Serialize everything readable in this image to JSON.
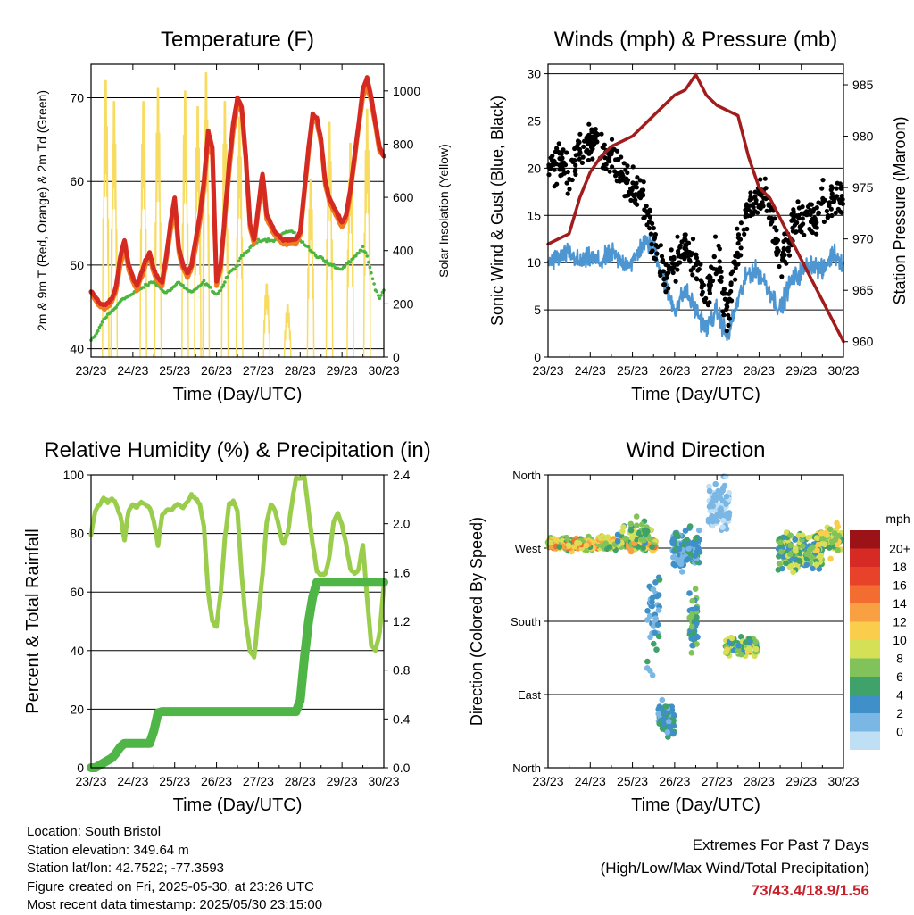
{
  "x_ticks": [
    "23/23",
    "24/23",
    "25/23",
    "26/23",
    "27/23",
    "28/23",
    "29/23",
    "30/23"
  ],
  "x_label": "Time (Day/UTC)",
  "colors": {
    "temp_red": "#d52a22",
    "temp_orange": "#f07a22",
    "dewpoint_green": "#4cb540",
    "insolation_yellow": "#f8dc62",
    "wind_blue": "#4d96d1",
    "gust_black": "#000000",
    "pressure_maroon": "#a11c1c",
    "rh_lightgreen": "#9acd4c",
    "precip_green": "#4fb546",
    "extremes_red": "#c8202a"
  },
  "chart_data": [
    {
      "type": "line",
      "title": "Temperature (F)",
      "xlabel": "Time (Day/UTC)",
      "ylabel": "2m & 9m T (Red, Orange) & 2m Td (Green)",
      "y2label": "Solar Insolation (Yellow)",
      "ylim": [
        39,
        74
      ],
      "yticks": [
        40,
        50,
        60,
        70
      ],
      "y2lim": [
        0,
        1100
      ],
      "y2ticks": [
        0,
        200,
        400,
        600,
        800,
        1000
      ],
      "x": [
        0,
        0.1,
        0.2,
        0.3,
        0.4,
        0.5,
        0.6,
        0.7,
        0.8,
        0.9,
        1,
        1.1,
        1.2,
        1.3,
        1.4,
        1.5,
        1.6,
        1.7,
        1.8,
        1.9,
        2,
        2.1,
        2.2,
        2.3,
        2.4,
        2.5,
        2.6,
        2.7,
        2.8,
        2.9,
        3,
        3.1,
        3.2,
        3.3,
        3.4,
        3.5,
        3.6,
        3.7,
        3.8,
        3.9,
        4,
        4.1,
        4.2,
        4.3,
        4.4,
        4.5,
        4.6,
        4.7,
        4.8,
        4.9,
        5,
        5.1,
        5.2,
        5.3,
        5.4,
        5.5,
        5.6,
        5.7,
        5.8,
        5.9,
        6,
        6.1,
        6.2,
        6.3,
        6.4,
        6.5,
        6.6,
        6.7,
        6.8,
        6.9,
        7
      ],
      "series": [
        {
          "name": "2m T",
          "color": "#d52a22",
          "values": [
            47,
            46.2,
            45.5,
            45.2,
            45.5,
            46,
            47.5,
            51,
            53,
            50,
            48.5,
            47.5,
            49,
            50.5,
            51.5,
            49.5,
            48.5,
            48,
            51,
            55,
            58,
            52,
            50,
            49,
            50,
            53,
            56,
            60,
            66,
            64,
            48,
            50,
            56,
            62,
            67,
            70,
            69,
            63,
            55,
            53,
            57,
            61,
            56,
            55,
            54,
            53.5,
            53,
            53,
            53,
            53,
            54,
            59,
            64,
            68,
            67.5,
            65,
            60,
            58,
            57,
            56,
            55,
            56,
            59,
            63,
            67,
            71,
            72.5,
            70,
            67,
            64,
            63
          ]
        },
        {
          "name": "9m T",
          "color": "#f07a22",
          "values": [
            46.8,
            45.8,
            45.1,
            44.8,
            45,
            45.5,
            47,
            50,
            52,
            49.5,
            48,
            47,
            48.5,
            50,
            51,
            49,
            48,
            47.5,
            50.5,
            54,
            57,
            51.5,
            49.5,
            48.5,
            49.5,
            52,
            55,
            59,
            65,
            63,
            47.5,
            49.5,
            55.5,
            61,
            66,
            69,
            68.5,
            62.5,
            54.5,
            52.5,
            56.5,
            60.5,
            55.5,
            54.5,
            53.5,
            53,
            52.5,
            52.5,
            52.5,
            52.5,
            53.5,
            58.5,
            63.5,
            67.5,
            67,
            64.5,
            59.5,
            57.5,
            56.5,
            55.5,
            54.5,
            55.5,
            58.5,
            62.5,
            66.5,
            70,
            71.5,
            69.5,
            66.5,
            63.5,
            63
          ]
        },
        {
          "name": "2m Td",
          "color": "#4cb540",
          "values": [
            41,
            41.5,
            42.5,
            43.5,
            44,
            44.5,
            45,
            45.8,
            46,
            46.3,
            46.5,
            47,
            47.2,
            47.5,
            47.8,
            48,
            47.5,
            47,
            46.8,
            47,
            47.5,
            48,
            47.5,
            47,
            46.8,
            47,
            47.5,
            48,
            47.5,
            47,
            46.5,
            47,
            48,
            49,
            49.5,
            50,
            51,
            51.5,
            52,
            52.5,
            53,
            53,
            53,
            53,
            53,
            53.5,
            53.8,
            54,
            54,
            53.5,
            53,
            52.5,
            52,
            51.5,
            51,
            51,
            50.5,
            50,
            50,
            49.5,
            49.5,
            50,
            50.5,
            51,
            51.5,
            52,
            51,
            49,
            47,
            46,
            47
          ]
        },
        {
          "name": "Solar Insolation",
          "color": "#f8dc62",
          "axis": "y2",
          "values": [
            0,
            0,
            0,
            0,
            0,
            0,
            0,
            0,
            0,
            0,
            0,
            0,
            0,
            0,
            0,
            0,
            0,
            0,
            0,
            0,
            0,
            0,
            0,
            0,
            0,
            0,
            0,
            0,
            0,
            0,
            0,
            0,
            0,
            0,
            0,
            0,
            0,
            0,
            0,
            0,
            0,
            0,
            0,
            0,
            0,
            0,
            0,
            0,
            0,
            0,
            0,
            0,
            0,
            0,
            0,
            0,
            0,
            0,
            0,
            0,
            0,
            0,
            0,
            0,
            0,
            0,
            0,
            0,
            0,
            0,
            0
          ],
          "peaks": [
            {
              "x": 0.35,
              "v": 1060
            },
            {
              "x": 0.55,
              "v": 980
            },
            {
              "x": 1.25,
              "v": 980
            },
            {
              "x": 1.6,
              "v": 1030
            },
            {
              "x": 2.25,
              "v": 1020
            },
            {
              "x": 2.55,
              "v": 960
            },
            {
              "x": 2.75,
              "v": 1090
            },
            {
              "x": 3.2,
              "v": 980
            },
            {
              "x": 3.55,
              "v": 920
            },
            {
              "x": 4.2,
              "v": 280
            },
            {
              "x": 4.7,
              "v": 200
            },
            {
              "x": 5.25,
              "v": 680
            },
            {
              "x": 5.7,
              "v": 900
            },
            {
              "x": 6.2,
              "v": 820
            },
            {
              "x": 6.6,
              "v": 950
            }
          ]
        }
      ]
    },
    {
      "type": "line",
      "title": "Winds (mph) & Pressure (mb)",
      "xlabel": "Time (Day/UTC)",
      "ylabel": "Sonic Wind & Gust (Blue, Black)",
      "y2label": "Station Pressure (Maroon)",
      "ylim": [
        0,
        31
      ],
      "yticks": [
        0,
        5,
        10,
        15,
        20,
        25,
        30
      ],
      "y2lim": [
        958.5,
        987
      ],
      "y2ticks": [
        960,
        965,
        970,
        975,
        980,
        985
      ],
      "x": [
        0,
        0.25,
        0.5,
        0.75,
        1,
        1.25,
        1.5,
        1.75,
        2,
        2.25,
        2.5,
        2.75,
        3,
        3.25,
        3.5,
        3.75,
        4,
        4.25,
        4.5,
        4.75,
        5,
        5.25,
        5.5,
        5.75,
        6,
        6.25,
        6.5,
        6.75,
        7
      ],
      "series": [
        {
          "name": "Wind",
          "color": "#4d96d1",
          "values": [
            10,
            10.5,
            11,
            10,
            10.5,
            10,
            11,
            10,
            10,
            12,
            12,
            8,
            5,
            7,
            5,
            3,
            5,
            2,
            6,
            9,
            9,
            7,
            5,
            8,
            9,
            10,
            9,
            11,
            10
          ]
        },
        {
          "name": "Gust",
          "color": "#000000",
          "values": [
            20,
            21,
            19,
            22,
            23,
            22,
            21,
            19,
            18,
            17,
            12,
            9,
            10,
            12,
            10,
            6,
            11,
            4,
            12,
            16,
            17,
            16,
            10,
            13,
            15,
            15,
            16,
            17,
            17
          ]
        },
        {
          "name": "Pressure",
          "color": "#a11c1c",
          "axis": "y2",
          "values": [
            969.5,
            970,
            970.5,
            974,
            976.5,
            978,
            979,
            979.5,
            980,
            981,
            982,
            983,
            984,
            984.5,
            986,
            984,
            983,
            982.5,
            982,
            978,
            975,
            974,
            972,
            970,
            968,
            966,
            964,
            962,
            960
          ]
        }
      ]
    },
    {
      "type": "line",
      "title": "Relative Humidity (%) & Precipitation (in)",
      "xlabel": "Time (Day/UTC)",
      "ylabel": "Percent & Total Rainfall",
      "ylim": [
        0,
        100
      ],
      "yticks": [
        0,
        20,
        40,
        60,
        80,
        100
      ],
      "y2lim": [
        0,
        2.4
      ],
      "y2ticks": [
        "0.0",
        "0.4",
        "0.8",
        "1.2",
        "1.6",
        "2.0",
        "2.4"
      ],
      "x": [
        0,
        0.1,
        0.2,
        0.3,
        0.4,
        0.5,
        0.6,
        0.7,
        0.8,
        0.9,
        1,
        1.1,
        1.2,
        1.3,
        1.4,
        1.5,
        1.6,
        1.7,
        1.8,
        1.9,
        2,
        2.1,
        2.2,
        2.3,
        2.4,
        2.5,
        2.6,
        2.7,
        2.8,
        2.9,
        3,
        3.1,
        3.2,
        3.3,
        3.4,
        3.5,
        3.6,
        3.7,
        3.8,
        3.9,
        4,
        4.1,
        4.2,
        4.3,
        4.4,
        4.5,
        4.6,
        4.7,
        4.8,
        4.9,
        5,
        5.1,
        5.2,
        5.3,
        5.4,
        5.5,
        5.6,
        5.7,
        5.8,
        5.9,
        6,
        6.1,
        6.2,
        6.3,
        6.4,
        6.5,
        6.6,
        6.7,
        6.8,
        6.9,
        7
      ],
      "series": [
        {
          "name": "RH",
          "color": "#9acd4c",
          "values": [
            80,
            88,
            90,
            92,
            91,
            92,
            90,
            86,
            78,
            88,
            90,
            89,
            91,
            90,
            89,
            84,
            76,
            86,
            88,
            88,
            89,
            90,
            89,
            91,
            93,
            92,
            90,
            82,
            60,
            50,
            48,
            60,
            78,
            90,
            91,
            88,
            66,
            50,
            40,
            38,
            52,
            66,
            84,
            90,
            88,
            82,
            76,
            80,
            90,
            99,
            99,
            99,
            88,
            76,
            67,
            66,
            66,
            72,
            84,
            87,
            83,
            76,
            68,
            66,
            68,
            76,
            58,
            42,
            40,
            46,
            62
          ]
        },
        {
          "name": "Precipitation",
          "color": "#4fb546",
          "axis": "y2",
          "values": [
            0,
            0,
            0.02,
            0.04,
            0.06,
            0.08,
            0.12,
            0.17,
            0.2,
            0.2,
            0.2,
            0.2,
            0.2,
            0.2,
            0.2,
            0.3,
            0.45,
            0.46,
            0.46,
            0.46,
            0.46,
            0.46,
            0.46,
            0.46,
            0.46,
            0.46,
            0.46,
            0.46,
            0.46,
            0.46,
            0.46,
            0.46,
            0.46,
            0.46,
            0.46,
            0.46,
            0.46,
            0.46,
            0.46,
            0.46,
            0.46,
            0.46,
            0.46,
            0.46,
            0.46,
            0.46,
            0.46,
            0.46,
            0.46,
            0.46,
            0.55,
            0.9,
            1.2,
            1.4,
            1.52,
            1.52,
            1.52,
            1.52,
            1.52,
            1.52,
            1.52,
            1.52,
            1.52,
            1.52,
            1.52,
            1.52,
            1.52,
            1.52,
            1.52,
            1.52,
            1.52
          ]
        }
      ]
    },
    {
      "type": "scatter",
      "title": "Wind Direction",
      "xlabel": "Time (Day/UTC)",
      "ylabel": "Direction (Colored By Speed)",
      "ylim": [
        0,
        360
      ],
      "yticks": [
        {
          "v": 0,
          "label": "North"
        },
        {
          "v": 90,
          "label": "East"
        },
        {
          "v": 180,
          "label": "South"
        },
        {
          "v": 270,
          "label": "West"
        },
        {
          "v": 360,
          "label": "North"
        }
      ],
      "clusters": [
        {
          "x0": 0,
          "x1": 2.55,
          "d": 275,
          "spread": 12,
          "speed": [
            6,
            16
          ],
          "n": 340
        },
        {
          "x0": 1.65,
          "x1": 2.55,
          "d": 290,
          "spread": 25,
          "speed": [
            4,
            10
          ],
          "n": 40
        },
        {
          "x0": 2.35,
          "x1": 2.65,
          "d": 180,
          "spread": 90,
          "speed": [
            1,
            6
          ],
          "n": 40
        },
        {
          "x0": 2.6,
          "x1": 3.0,
          "d": 60,
          "spread": 30,
          "speed": [
            2,
            7
          ],
          "n": 80
        },
        {
          "x0": 2.95,
          "x1": 3.6,
          "d": 270,
          "spread": 35,
          "speed": [
            1,
            6
          ],
          "n": 110
        },
        {
          "x0": 3.35,
          "x1": 3.55,
          "d": 180,
          "spread": 50,
          "speed": [
            3,
            9
          ],
          "n": 50
        },
        {
          "x0": 3.8,
          "x1": 4.3,
          "d": 320,
          "spread": 45,
          "speed": [
            0,
            3
          ],
          "n": 90
        },
        {
          "x0": 4.2,
          "x1": 5.0,
          "d": 150,
          "spread": 18,
          "speed": [
            4,
            12
          ],
          "n": 110
        },
        {
          "x0": 5.45,
          "x1": 6.5,
          "d": 265,
          "spread": 32,
          "speed": [
            3,
            11
          ],
          "n": 200
        },
        {
          "x0": 6.35,
          "x1": 6.95,
          "d": 280,
          "spread": 25,
          "speed": [
            6,
            13
          ],
          "n": 70
        }
      ],
      "colorbar": {
        "title": "mph",
        "labels": [
          "20+",
          "18",
          "16",
          "14",
          "12",
          "10",
          "8",
          "6",
          "4",
          "2",
          "0"
        ],
        "colors": [
          "#9c1317",
          "#d52b24",
          "#e8432a",
          "#f36d30",
          "#f9a042",
          "#fbcd4c",
          "#d5e056",
          "#81c35a",
          "#3ea26a",
          "#3f8fc8",
          "#7bb7e4",
          "#bfdff4"
        ]
      }
    }
  ],
  "meta": {
    "location": "Location: South Bristol",
    "elevation": "Station elevation: 349.64 m",
    "latlon": "Station lat/lon: 42.7522; -77.3593",
    "created": "Figure created on Fri, 2025-05-30, at 23:26 UTC",
    "recent": "Most recent data timestamp: 2025/05/30 23:15:00"
  },
  "extremes": {
    "title": "Extremes For Past 7 Days",
    "subtitle": "(High/Low/Max Wind/Total Precipitation)",
    "values": "73/43.4/18.9/1.56"
  }
}
